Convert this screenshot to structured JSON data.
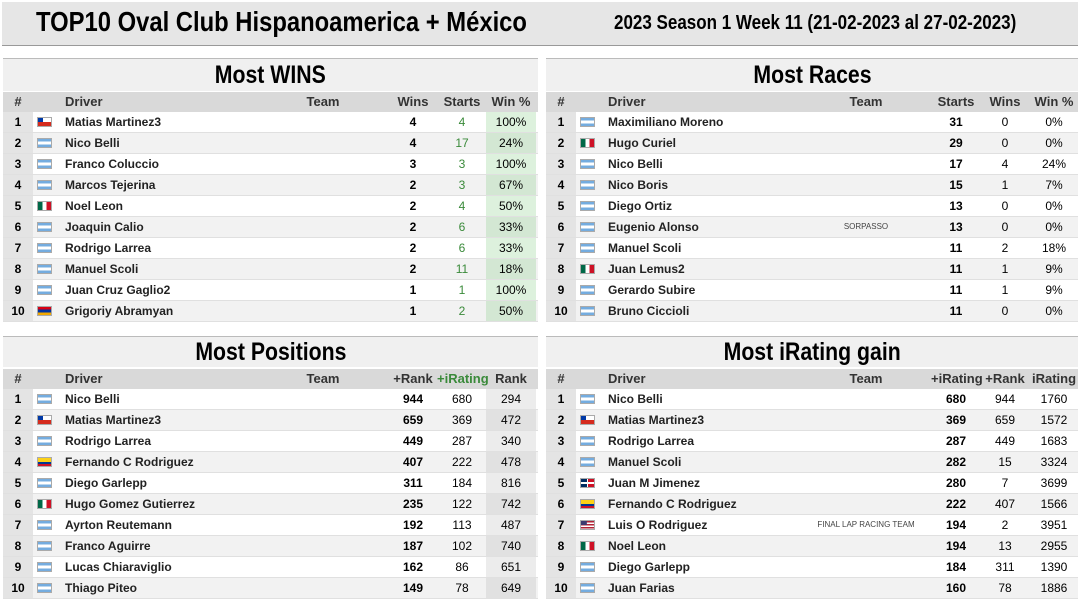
{
  "header": {
    "title": "TOP10 Oval Club Hispanoamerica + México",
    "subtitle": "2023 Season 1 Week 11 (21-02-2023 al 27-02-2023)"
  },
  "tables": [
    {
      "title": "Most WINS",
      "columns": [
        "#",
        "Driver",
        "Team",
        "Wins",
        "Starts",
        "Win %"
      ],
      "rows": [
        [
          "1",
          "Matias Martinez3",
          null,
          "4",
          "4",
          "100%"
        ],
        [
          "2",
          "Nico Belli",
          null,
          "4",
          "17",
          "24%"
        ],
        [
          "3",
          "Franco Coluccio",
          null,
          "3",
          "3",
          "100%"
        ],
        [
          "4",
          "Marcos Tejerina",
          null,
          "2",
          "3",
          "67%"
        ],
        [
          "5",
          "Noel Leon",
          null,
          "2",
          "4",
          "50%"
        ],
        [
          "6",
          "Joaquin Calio",
          null,
          "2",
          "6",
          "33%"
        ],
        [
          "7",
          "Rodrigo Larrea",
          null,
          "2",
          "6",
          "33%"
        ],
        [
          "8",
          "Manuel Scoli",
          null,
          "2",
          "11",
          "18%"
        ],
        [
          "9",
          "Juan Cruz Gaglio2",
          null,
          "1",
          "1",
          "100%"
        ],
        [
          "10",
          "Grigoriy Abramyan",
          null,
          "1",
          "2",
          "50%"
        ]
      ]
    },
    {
      "title": "Most Races",
      "columns": [
        "#",
        "Driver",
        "Team",
        "Starts",
        "Wins",
        "Win %"
      ],
      "rows": [
        [
          "1",
          "Maximiliano Moreno",
          null,
          "31",
          "0",
          "0%"
        ],
        [
          "2",
          "Hugo Curiel",
          null,
          "29",
          "0",
          "0%"
        ],
        [
          "3",
          "Nico Belli",
          null,
          "17",
          "4",
          "24%"
        ],
        [
          "4",
          "Nico Boris",
          null,
          "15",
          "1",
          "7%"
        ],
        [
          "5",
          "Diego Ortiz",
          null,
          "13",
          "0",
          "0%"
        ],
        [
          "6",
          "Eugenio Alonso",
          "SORPASSO",
          "13",
          "0",
          "0%"
        ],
        [
          "7",
          "Manuel Scoli",
          null,
          "11",
          "2",
          "18%"
        ],
        [
          "8",
          "Juan Lemus2",
          null,
          "11",
          "1",
          "9%"
        ],
        [
          "9",
          "Gerardo Subire",
          null,
          "11",
          "1",
          "9%"
        ],
        [
          "10",
          "Bruno Ciccioli",
          null,
          "11",
          "0",
          "0%"
        ]
      ]
    },
    {
      "title": "Most Positions",
      "columns": [
        "#",
        "Driver",
        "Team",
        "+Rank",
        "+iRating",
        "Rank"
      ],
      "rows": [
        [
          "1",
          "Nico Belli",
          null,
          "944",
          "680",
          "294"
        ],
        [
          "2",
          "Matias Martinez3",
          null,
          "659",
          "369",
          "472"
        ],
        [
          "3",
          "Rodrigo Larrea",
          null,
          "449",
          "287",
          "340"
        ],
        [
          "4",
          "Fernando C Rodriguez",
          null,
          "407",
          "222",
          "478"
        ],
        [
          "5",
          "Diego Garlepp",
          null,
          "311",
          "184",
          "816"
        ],
        [
          "6",
          "Hugo Gomez Gutierrez",
          null,
          "235",
          "122",
          "742"
        ],
        [
          "7",
          "Ayrton Reutemann",
          null,
          "192",
          "113",
          "487"
        ],
        [
          "8",
          "Franco Aguirre",
          null,
          "187",
          "102",
          "740"
        ],
        [
          "9",
          "Lucas Chiaraviglio",
          null,
          "162",
          "86",
          "651"
        ],
        [
          "10",
          "Thiago Piteo",
          null,
          "149",
          "78",
          "649"
        ]
      ]
    },
    {
      "title": "Most iRating gain",
      "columns": [
        "#",
        "Driver",
        "Team",
        "+iRating",
        "+Rank",
        "iRating"
      ],
      "rows": [
        [
          "1",
          "Nico Belli",
          null,
          "680",
          "944",
          "1760"
        ],
        [
          "2",
          "Matias Martinez3",
          null,
          "369",
          "659",
          "1572"
        ],
        [
          "3",
          "Rodrigo Larrea",
          null,
          "287",
          "449",
          "1683"
        ],
        [
          "4",
          "Manuel Scoli",
          null,
          "282",
          "15",
          "3324"
        ],
        [
          "5",
          "Juan M Jimenez",
          null,
          "280",
          "7",
          "3699"
        ],
        [
          "6",
          "Fernando C Rodriguez",
          null,
          "222",
          "407",
          "1566"
        ],
        [
          "7",
          "Luis O Rodriguez",
          "FINAL LAP RACING TEAM",
          "194",
          "2",
          "3951"
        ],
        [
          "8",
          "Noel Leon",
          null,
          "194",
          "13",
          "2955"
        ],
        [
          "9",
          "Diego Garlepp",
          null,
          "184",
          "311",
          "1390"
        ],
        [
          "10",
          "Juan Farias",
          null,
          "160",
          "78",
          "1886"
        ]
      ]
    }
  ]
}
